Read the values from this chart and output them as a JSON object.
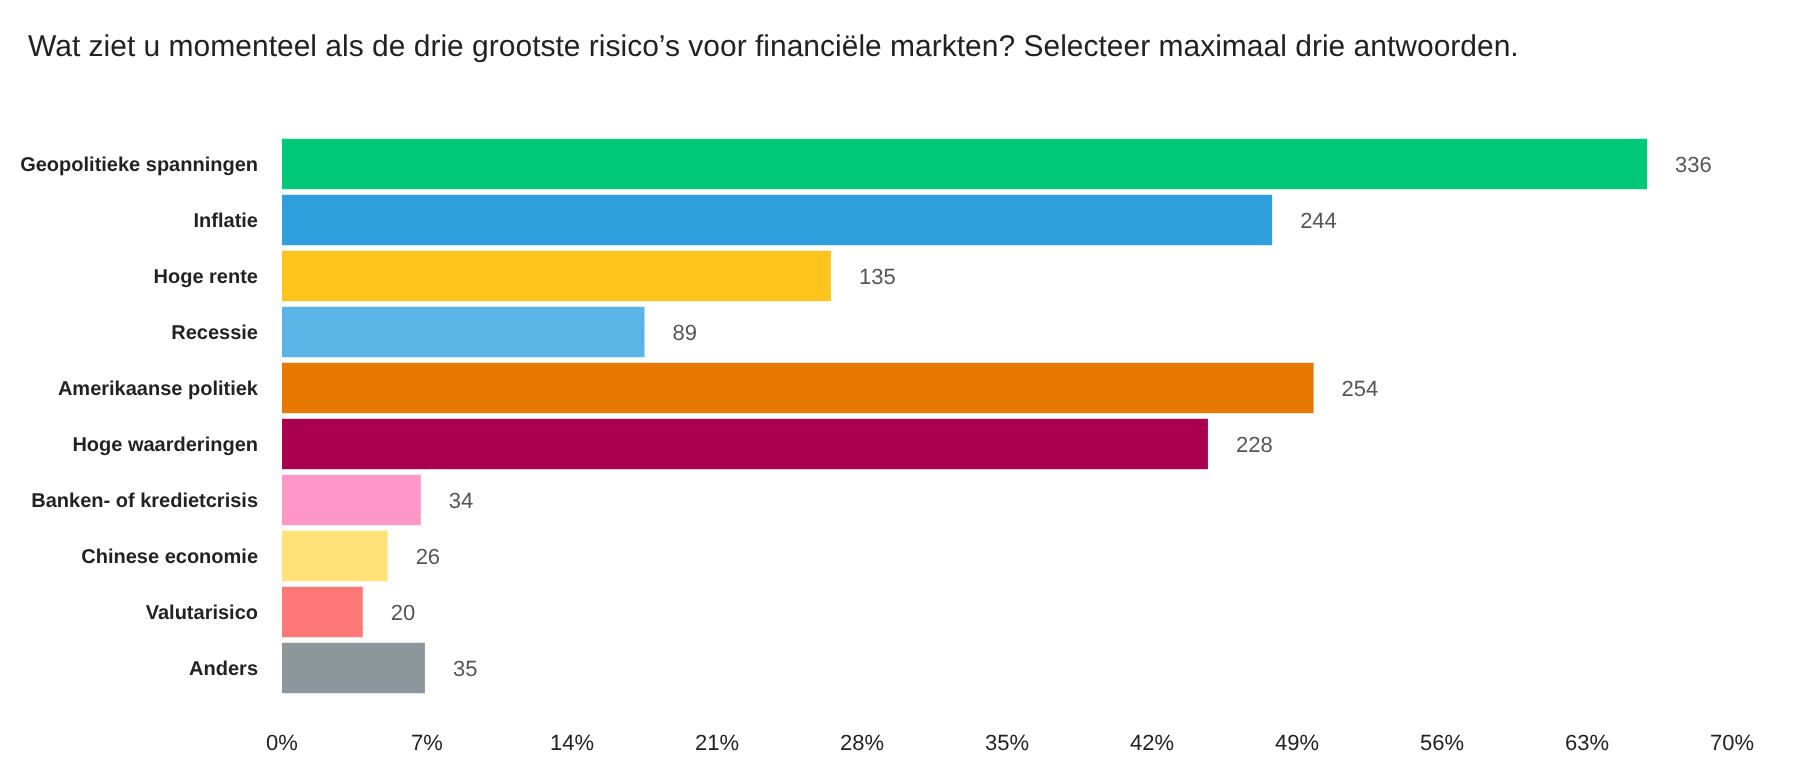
{
  "chart_data": {
    "type": "bar",
    "orientation": "horizontal",
    "title": "Wat ziet u momenteel als de drie grootste risico’s voor financiële markten? Selecteer maximaal drie antwoorden.",
    "categories": [
      "Geopolitieke spanningen",
      "Inflatie",
      "Hoge rente",
      "Recessie",
      "Amerikaanse politiek",
      "Hoge waarderingen",
      "Banken- of kredietcrisis",
      "Chinese economie",
      "Valutarisico",
      "Anders"
    ],
    "values": [
      65.9,
      47.8,
      26.5,
      17.5,
      49.8,
      44.7,
      6.7,
      5.1,
      3.9,
      6.9
    ],
    "annotations": [
      {
        "text": "336",
        "x": 65.9,
        "y": "Geopolitieke spanningen"
      },
      {
        "text": "244",
        "x": 47.8,
        "y": "Inflatie"
      },
      {
        "text": "135",
        "x": 26.5,
        "y": "Hoge rente"
      },
      {
        "text": "89",
        "x": 17.5,
        "y": "Recessie"
      },
      {
        "text": "254",
        "x": 49.8,
        "y": "Amerikaanse politiek"
      },
      {
        "text": "228",
        "x": 44.7,
        "y": "Hoge waarderingen"
      },
      {
        "text": "34",
        "x": 6.7,
        "y": "Banken- of kredietcrisis"
      },
      {
        "text": "26",
        "x": 5.1,
        "y": "Chinese economie"
      },
      {
        "text": "20",
        "x": 3.9,
        "y": "Valutarisico"
      },
      {
        "text": "35",
        "x": 6.9,
        "y": "Anders"
      }
    ],
    "colors": [
      "#00c878",
      "#2fa0dc",
      "#ffc31e",
      "#5ab4e6",
      "#e67800",
      "#aa0050",
      "#ff96c8",
      "#ffe178",
      "#ff7878",
      "#8c969b"
    ],
    "xlim": [
      0,
      70
    ],
    "xticks": [
      {
        "value": 0,
        "label": "0%"
      },
      {
        "value": 7,
        "label": "7%"
      },
      {
        "value": 14,
        "label": "14%"
      },
      {
        "value": 21,
        "label": "21%"
      },
      {
        "value": 28,
        "label": "28%"
      },
      {
        "value": 35,
        "label": "35%"
      },
      {
        "value": 42,
        "label": "42%"
      },
      {
        "value": 49,
        "label": "49%"
      },
      {
        "value": 56,
        "label": "56%"
      },
      {
        "value": 63,
        "label": "63%"
      },
      {
        "value": 70,
        "label": "70%"
      }
    ],
    "grid": false
  }
}
